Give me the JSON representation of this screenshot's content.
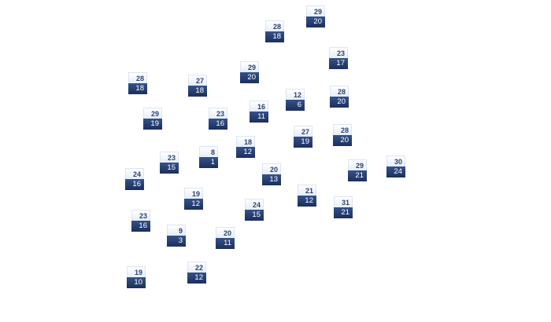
{
  "colors": {
    "top_text": "#2c4374",
    "bottom_fill": "#1f3566",
    "top_fill": "#eef3fa"
  },
  "tags": [
    {
      "top": "29",
      "bottom": "20"
    },
    {
      "top": "28",
      "bottom": "18"
    },
    {
      "top": "23",
      "bottom": "17"
    },
    {
      "top": "29",
      "bottom": "20"
    },
    {
      "top": "28",
      "bottom": "18"
    },
    {
      "top": "27",
      "bottom": "18"
    },
    {
      "top": "12",
      "bottom": "6"
    },
    {
      "top": "28",
      "bottom": "20"
    },
    {
      "top": "16",
      "bottom": "11"
    },
    {
      "top": "29",
      "bottom": "19"
    },
    {
      "top": "23",
      "bottom": "16"
    },
    {
      "top": "27",
      "bottom": "19"
    },
    {
      "top": "28",
      "bottom": "20"
    },
    {
      "top": "18",
      "bottom": "12"
    },
    {
      "top": "8",
      "bottom": "1"
    },
    {
      "top": "23",
      "bottom": "15"
    },
    {
      "top": "20",
      "bottom": "13"
    },
    {
      "top": "29",
      "bottom": "21"
    },
    {
      "top": "30",
      "bottom": "24"
    },
    {
      "top": "24",
      "bottom": "16"
    },
    {
      "top": "21",
      "bottom": "12"
    },
    {
      "top": "19",
      "bottom": "12"
    },
    {
      "top": "31",
      "bottom": "21"
    },
    {
      "top": "24",
      "bottom": "15"
    },
    {
      "top": "23",
      "bottom": "16"
    },
    {
      "top": "9",
      "bottom": "3"
    },
    {
      "top": "20",
      "bottom": "11"
    },
    {
      "top": "22",
      "bottom": "12"
    },
    {
      "top": "19",
      "bottom": "10"
    }
  ]
}
